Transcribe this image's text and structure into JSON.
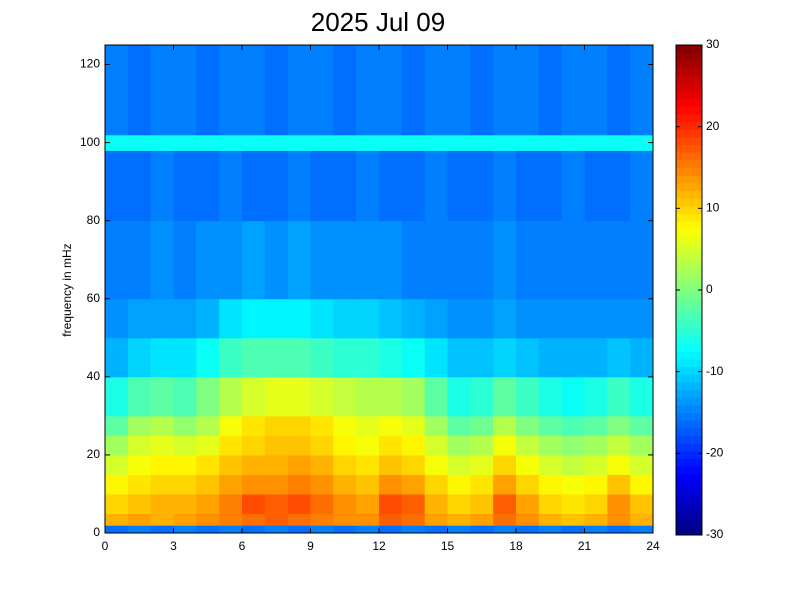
{
  "chart_data": {
    "type": "heatmap",
    "title": "2025 Jul 09",
    "y_label": "frequency in mHz",
    "colormap": "jet",
    "xlim": [
      0,
      24
    ],
    "xticks": [
      0,
      3,
      6,
      9,
      12,
      15,
      18,
      21,
      24
    ],
    "ylim": [
      0,
      125
    ],
    "yticks": [
      0,
      20,
      40,
      60,
      80,
      100,
      120
    ],
    "clim": [
      -30,
      30
    ],
    "cticks": [
      -30,
      -20,
      -10,
      0,
      10,
      20,
      30
    ],
    "x_bins": [
      0,
      1,
      2,
      3,
      4,
      5,
      6,
      7,
      8,
      9,
      10,
      11,
      12,
      13,
      14,
      15,
      16,
      17,
      18,
      19,
      20,
      21,
      22,
      23,
      24
    ],
    "y_bins": [
      0,
      2,
      5,
      10,
      15,
      20,
      25,
      30,
      40,
      50,
      60,
      80,
      98,
      102,
      125
    ],
    "values": [
      [
        -16,
        -15,
        -16,
        -15,
        -16,
        -15,
        -16,
        -15,
        -16,
        -15,
        -16,
        -15,
        -16,
        -15,
        -16,
        -15,
        -16,
        -15,
        -16,
        -15,
        -16,
        -15,
        -16,
        -15
      ],
      [
        12,
        13,
        12,
        13,
        14,
        15,
        16,
        17,
        16,
        15,
        14,
        14,
        17,
        16,
        13,
        12,
        13,
        16,
        14,
        12,
        11,
        12,
        14,
        12
      ],
      [
        10,
        11,
        12,
        12,
        13,
        15,
        18,
        17,
        18,
        16,
        14,
        13,
        18,
        17,
        12,
        10,
        11,
        17,
        13,
        10,
        9,
        10,
        14,
        11
      ],
      [
        8,
        9,
        10,
        10,
        11,
        13,
        14,
        14,
        15,
        14,
        12,
        11,
        14,
        13,
        10,
        8,
        9,
        13,
        10,
        8,
        7,
        8,
        11,
        8
      ],
      [
        5,
        7,
        8,
        8,
        9,
        11,
        12,
        12,
        13,
        12,
        10,
        9,
        11,
        10,
        7,
        5,
        6,
        10,
        7,
        5,
        4,
        5,
        7,
        5
      ],
      [
        2,
        5,
        6,
        5,
        6,
        9,
        10,
        11,
        11,
        10,
        8,
        7,
        9,
        8,
        5,
        2,
        3,
        7,
        4,
        2,
        1,
        2,
        4,
        2
      ],
      [
        -2,
        2,
        3,
        1,
        3,
        7,
        9,
        10,
        10,
        9,
        7,
        6,
        7,
        6,
        2,
        -2,
        -1,
        3,
        0,
        -2,
        -3,
        -2,
        0,
        -2
      ],
      [
        -6,
        -3,
        -2,
        -3,
        0,
        3,
        5,
        6,
        6,
        5,
        4,
        3,
        3,
        2,
        -2,
        -6,
        -5,
        -2,
        -4,
        -6,
        -7,
        -6,
        -4,
        -6
      ],
      [
        -12,
        -10,
        -9,
        -9,
        -7,
        -4,
        -3,
        -3,
        -3,
        -4,
        -5,
        -5,
        -6,
        -7,
        -9,
        -11,
        -11,
        -10,
        -11,
        -12,
        -12,
        -12,
        -11,
        -12
      ],
      [
        -14,
        -13,
        -13,
        -13,
        -12,
        -9,
        -8,
        -8,
        -8,
        -9,
        -10,
        -10,
        -11,
        -12,
        -13,
        -14,
        -14,
        -13,
        -14,
        -14,
        -14,
        -14,
        -14,
        -14
      ],
      [
        -15,
        -15,
        -14,
        -15,
        -14,
        -14,
        -13,
        -14,
        -13,
        -14,
        -14,
        -14,
        -14,
        -15,
        -15,
        -15,
        -15,
        -14,
        -15,
        -15,
        -15,
        -15,
        -15,
        -15
      ],
      [
        -16,
        -16,
        -15,
        -16,
        -16,
        -15,
        -16,
        -16,
        -15,
        -16,
        -16,
        -15,
        -16,
        -16,
        -15,
        -16,
        -16,
        -15,
        -16,
        -16,
        -15,
        -16,
        -16,
        -15
      ],
      [
        -7,
        -7,
        -7,
        -7,
        -7,
        -7,
        -7,
        -7,
        -7,
        -7,
        -7,
        -7,
        -7,
        -7,
        -7,
        -7,
        -7,
        -7,
        -7,
        -7,
        -7,
        -7,
        -7,
        -7
      ],
      [
        -15,
        -16,
        -15,
        -15,
        -16,
        -15,
        -15,
        -16,
        -15,
        -15,
        -16,
        -15,
        -15,
        -16,
        -15,
        -15,
        -16,
        -15,
        -15,
        -16,
        -15,
        -15,
        -16,
        -15
      ]
    ]
  }
}
